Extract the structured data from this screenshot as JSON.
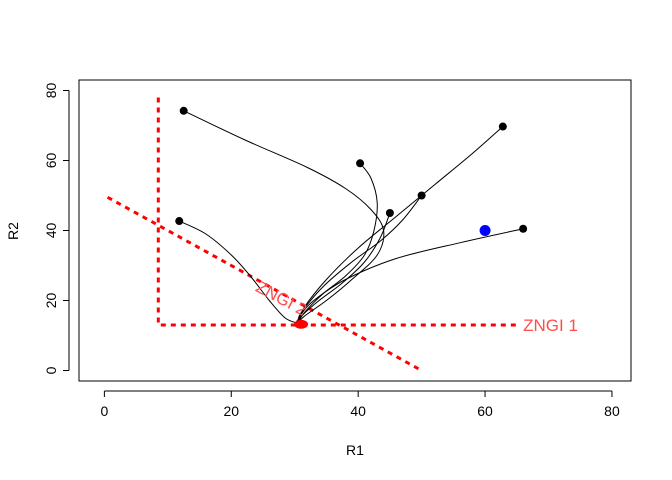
{
  "chart_data": {
    "type": "scatter",
    "title": "",
    "xlabel": "R1",
    "ylabel": "R2",
    "xlim": [
      -4,
      83
    ],
    "ylim": [
      -3,
      83
    ],
    "x_ticks": [
      0,
      20,
      40,
      60,
      80
    ],
    "y_ticks": [
      0,
      20,
      40,
      60,
      80
    ],
    "grid": false,
    "colors": {
      "trajectory": "#000000",
      "zngi": "#ff0000",
      "equilibrium": "#ff0000",
      "supply_point": "#0000ff"
    },
    "zngi_lines": [
      {
        "name": "ZNGI 1",
        "points": [
          [
            8.5,
            78
          ],
          [
            8.5,
            13
          ],
          [
            65,
            13
          ]
        ]
      },
      {
        "name": "ZNGI 2",
        "points": [
          [
            0.5,
            49.5
          ],
          [
            50,
            0
          ]
        ]
      }
    ],
    "zngi_labels": [
      {
        "text": "ZNGI 1",
        "x": 66,
        "y": 12.5,
        "angle": 0
      },
      {
        "text": "ZNGI 2",
        "x": 24,
        "y": 24,
        "angle": -28
      }
    ],
    "start_points": [
      [
        12.5,
        74.2
      ],
      [
        40.3,
        59.2
      ],
      [
        45,
        45
      ],
      [
        50,
        50
      ],
      [
        62.8,
        69.7
      ],
      [
        66,
        40.5
      ],
      [
        11.8,
        42.7
      ]
    ],
    "trajectories": [
      [
        [
          12.5,
          74.2
        ],
        [
          22,
          66
        ],
        [
          32,
          58
        ],
        [
          38,
          52
        ],
        [
          42,
          46
        ],
        [
          44,
          40
        ],
        [
          43,
          33
        ],
        [
          39,
          26
        ],
        [
          35,
          20
        ],
        [
          31.5,
          15.5
        ],
        [
          30.5,
          13.5
        ]
      ],
      [
        [
          40.3,
          59.2
        ],
        [
          42,
          55
        ],
        [
          43,
          48
        ],
        [
          42.5,
          40
        ],
        [
          41,
          33
        ],
        [
          38,
          27
        ],
        [
          34.5,
          22
        ],
        [
          31.5,
          16.5
        ],
        [
          30.5,
          13.5
        ]
      ],
      [
        [
          45,
          45
        ],
        [
          43.5,
          38
        ],
        [
          41,
          31
        ],
        [
          37.5,
          25
        ],
        [
          33.5,
          19.5
        ],
        [
          30.5,
          14.5
        ],
        [
          30.5,
          13.5
        ]
      ],
      [
        [
          50,
          50
        ],
        [
          47,
          43
        ],
        [
          43.5,
          37
        ],
        [
          39,
          31
        ],
        [
          34.5,
          24
        ],
        [
          31,
          16.5
        ],
        [
          30.5,
          13.5
        ]
      ],
      [
        [
          62.8,
          69.7
        ],
        [
          58,
          62
        ],
        [
          52,
          53
        ],
        [
          46,
          44
        ],
        [
          40,
          35
        ],
        [
          35,
          26
        ],
        [
          31.5,
          18
        ],
        [
          30.5,
          13.5
        ]
      ],
      [
        [
          66,
          40.5
        ],
        [
          56,
          36.5
        ],
        [
          46,
          32
        ],
        [
          38,
          26
        ],
        [
          33,
          20
        ],
        [
          31,
          16
        ],
        [
          30.5,
          13.5
        ]
      ],
      [
        [
          11.8,
          42.7
        ],
        [
          16,
          39
        ],
        [
          20,
          33
        ],
        [
          23,
          27
        ],
        [
          26,
          20
        ],
        [
          28.5,
          15
        ],
        [
          30.5,
          13.5
        ]
      ]
    ],
    "equilibrium_point": [
      31,
      13.2
    ],
    "supply_point": [
      60,
      40
    ]
  }
}
